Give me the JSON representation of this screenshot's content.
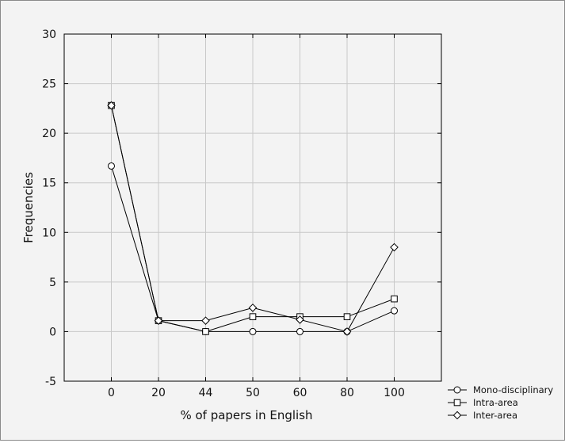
{
  "chart_data": {
    "type": "line",
    "categories": [
      "0",
      "20",
      "44",
      "50",
      "60",
      "80",
      "100"
    ],
    "xlabel": "% of papers in English",
    "ylabel": "Frequencies",
    "ylim": [
      -5,
      30
    ],
    "yticks": [
      -5,
      0,
      5,
      10,
      15,
      20,
      25,
      30
    ],
    "grid": true,
    "legend_position": "bottom-right, outside plot",
    "series": [
      {
        "name": "Mono-disciplinary",
        "marker": "circle",
        "values": [
          16.7,
          1.1,
          0.0,
          0.0,
          0.0,
          0.0,
          2.1
        ]
      },
      {
        "name": "Intra-area",
        "marker": "square",
        "values": [
          22.8,
          1.1,
          0.0,
          1.5,
          1.5,
          1.5,
          3.3
        ]
      },
      {
        "name": "Inter-area",
        "marker": "diamond",
        "values": [
          22.8,
          1.1,
          1.1,
          2.4,
          1.2,
          0.0,
          8.5
        ]
      }
    ]
  }
}
